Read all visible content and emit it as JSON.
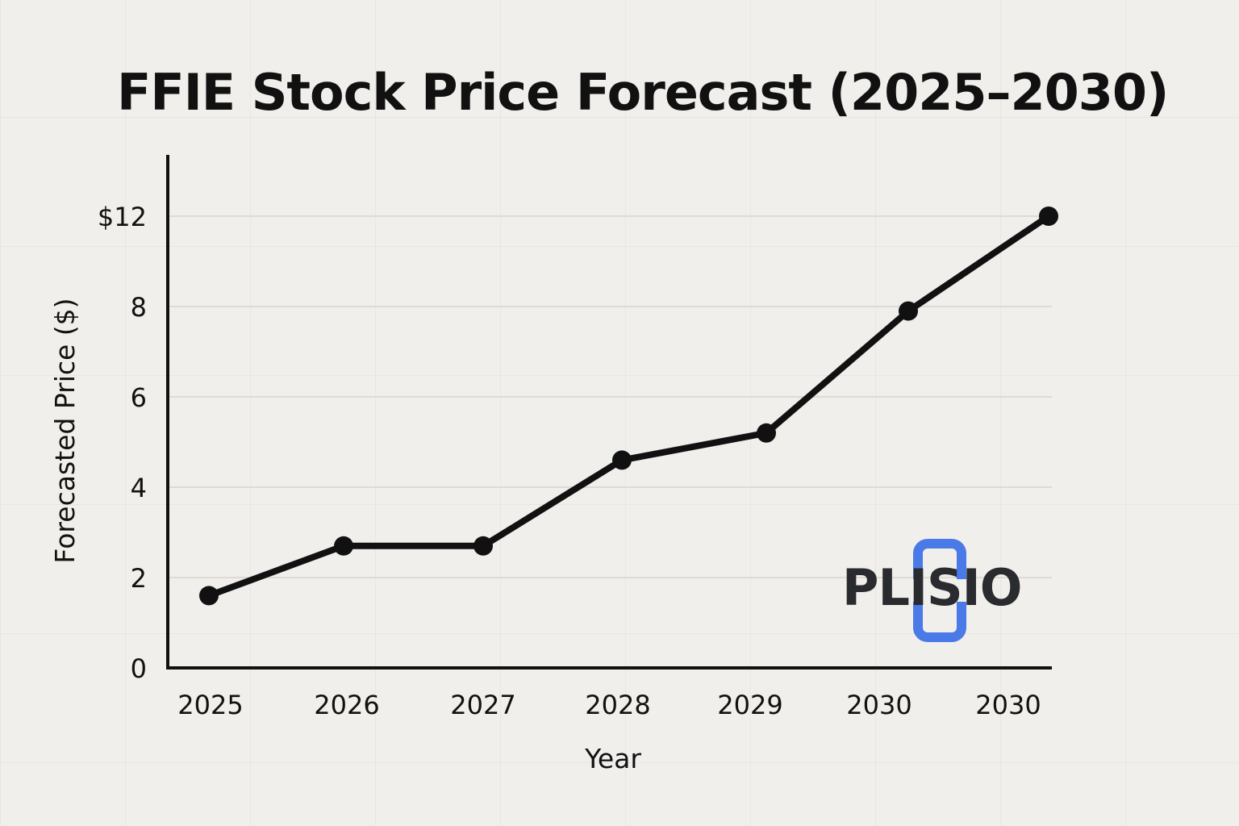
{
  "chart_data": {
    "type": "line",
    "title": "FFIE Stock Price Forecast (2025–2030)",
    "xlabel": "Year",
    "ylabel": "Forecasted Price ($)",
    "categories": [
      "2025",
      "2026",
      "2027",
      "2028",
      "2029",
      "2030",
      "2030"
    ],
    "series": [
      {
        "values": [
          1.6,
          2.7,
          2.7,
          4.6,
          5.2,
          7.9,
          12.0
        ]
      }
    ],
    "y_ticks": [
      {
        "value": 0,
        "label": "0"
      },
      {
        "value": 2,
        "label": "2"
      },
      {
        "value": 4,
        "label": "4"
      },
      {
        "value": 6,
        "label": "6"
      },
      {
        "value": 8,
        "label": "8"
      },
      {
        "value": 12,
        "label": "$12"
      }
    ],
    "y_scale_note_labels": [
      "0",
      "2",
      "4",
      "6",
      "8",
      "$12"
    ],
    "grid": true,
    "legend": "none",
    "line_color": "#111111"
  },
  "watermark": {
    "text": "PLISIO",
    "accent_color": "#4a7ae8",
    "text_color": "#2a2b2e"
  }
}
